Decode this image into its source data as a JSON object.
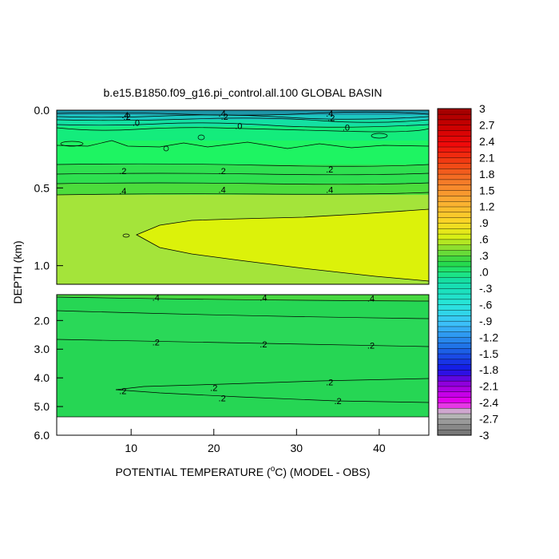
{
  "chart_data": {
    "type": "heatmap",
    "title": "b.e15.B1850.f09_g16.pi_control.all.100 GLOBAL BASIN",
    "xlabel_pre": "POTENTIAL TEMPERATURE (",
    "xlabel_deg": "o",
    "xlabel_post": "C) (MODEL - OBS)",
    "ylabel": "DEPTH (km)",
    "x_range": [
      1,
      46
    ],
    "x_ticks": [
      10,
      20,
      30,
      40
    ],
    "upper_panel": {
      "depth_range_km": [
        0.0,
        1.12
      ],
      "y_ticks": [
        {
          "v": 0.0,
          "label": "0.0"
        },
        {
          "v": 0.5,
          "label": "0.5"
        },
        {
          "v": 1.0,
          "label": "1.0"
        }
      ]
    },
    "lower_panel": {
      "depth_range_km": [
        1.1,
        6.0
      ],
      "data_bottom_km": 5.35,
      "y_ticks": [
        {
          "v": 2.0,
          "label": "2.0"
        },
        {
          "v": 3.0,
          "label": "3.0"
        },
        {
          "v": 4.0,
          "label": "4.0"
        },
        {
          "v": 5.0,
          "label": "5.0"
        },
        {
          "v": 6.0,
          "label": "6.0"
        }
      ]
    },
    "colorbar": {
      "range": [
        -3.0,
        3.0
      ],
      "levels_count": 60,
      "tick_labels": [
        "3",
        "2.7",
        "2.4",
        "2.1",
        "1.8",
        "1.5",
        "1.2",
        ".9",
        ".6",
        ".3",
        ".0",
        "-.3",
        "-.6",
        "-.9",
        "-1.2",
        "-1.5",
        "-1.8",
        "-2.1",
        "-2.4",
        "-2.7",
        "-3"
      ]
    },
    "contour_labels": [
      {
        "text": ".4",
        "x": 9.3,
        "d": 0.03,
        "panel": "upper"
      },
      {
        "text": ".2",
        "x": 9.5,
        "d": 0.04,
        "panel": "upper"
      },
      {
        "text": ".0",
        "x": 10.6,
        "d": 0.08,
        "panel": "upper"
      },
      {
        "text": ".4",
        "x": 21.0,
        "d": 0.02,
        "panel": "upper"
      },
      {
        "text": ".2",
        "x": 21.3,
        "d": 0.04,
        "panel": "upper"
      },
      {
        "text": ".0",
        "x": 23.0,
        "d": 0.1,
        "panel": "upper"
      },
      {
        "text": ".4",
        "x": 34.0,
        "d": 0.02,
        "panel": "upper"
      },
      {
        "text": ".2",
        "x": 34.2,
        "d": 0.05,
        "panel": "upper"
      },
      {
        "text": ".0",
        "x": 36.0,
        "d": 0.11,
        "panel": "upper"
      },
      {
        "text": ".2",
        "x": 9.0,
        "d": 0.39,
        "panel": "upper"
      },
      {
        "text": ".2",
        "x": 21.0,
        "d": 0.39,
        "panel": "upper"
      },
      {
        "text": ".2",
        "x": 34.0,
        "d": 0.38,
        "panel": "upper"
      },
      {
        "text": ".4",
        "x": 9.0,
        "d": 0.52,
        "panel": "upper"
      },
      {
        "text": ".4",
        "x": 21.0,
        "d": 0.51,
        "panel": "upper"
      },
      {
        "text": ".4",
        "x": 34.0,
        "d": 0.51,
        "panel": "upper"
      },
      {
        "text": ".4",
        "x": 13.0,
        "d": 1.2,
        "panel": "lower"
      },
      {
        "text": ".4",
        "x": 26.0,
        "d": 1.2,
        "panel": "lower"
      },
      {
        "text": ".4",
        "x": 39.0,
        "d": 1.23,
        "panel": "lower"
      },
      {
        "text": ".2",
        "x": 13.0,
        "d": 2.75,
        "panel": "lower"
      },
      {
        "text": ".2",
        "x": 26.0,
        "d": 2.82,
        "panel": "lower"
      },
      {
        "text": ".2",
        "x": 39.0,
        "d": 2.87,
        "panel": "lower"
      },
      {
        "text": ".2",
        "x": 9.0,
        "d": 4.45,
        "panel": "lower"
      },
      {
        "text": ".2",
        "x": 20.0,
        "d": 4.35,
        "panel": "lower"
      },
      {
        "text": ".2",
        "x": 34.0,
        "d": 4.15,
        "panel": "lower"
      },
      {
        "text": ".2",
        "x": 21.0,
        "d": 4.7,
        "panel": "lower"
      },
      {
        "text": ".2",
        "x": 35.0,
        "d": 4.8,
        "panel": "lower"
      }
    ]
  }
}
